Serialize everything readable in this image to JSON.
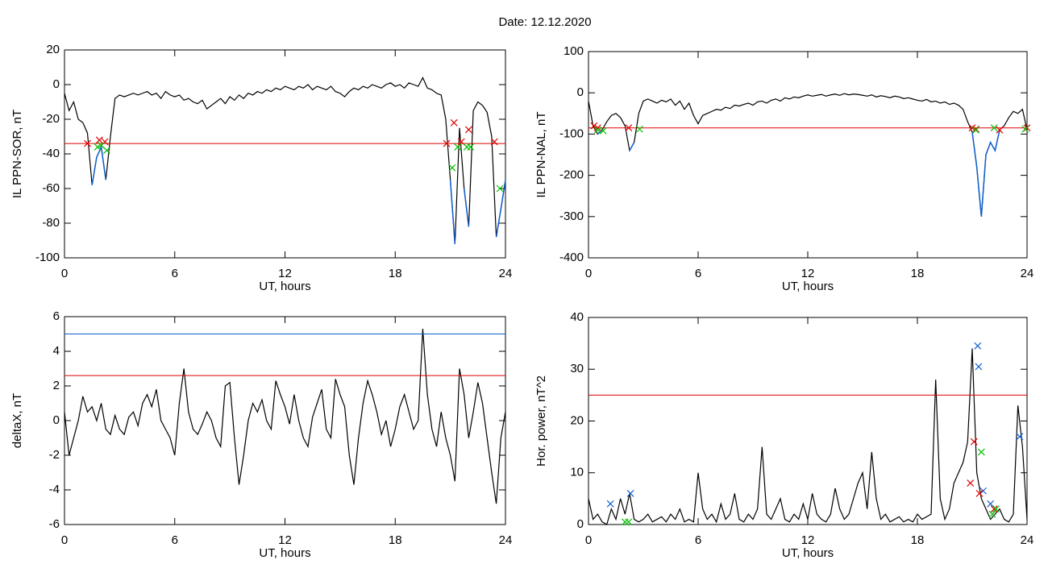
{
  "title": "Date:  12.12.2020",
  "chart_data": [
    {
      "type": "line",
      "ylabel": "IL PPN-SOR, nT",
      "xlabel": "UT, hours",
      "color": "#000000",
      "below_color": "#1060d0",
      "xlim": [
        0,
        24
      ],
      "xticks": [
        0,
        6,
        12,
        18,
        24
      ],
      "ylim": [
        -100,
        20
      ],
      "yticks": [
        20,
        0,
        -20,
        -40,
        -60,
        -80,
        -100
      ],
      "hlines": [
        {
          "value": -34,
          "color": "#e00000"
        }
      ],
      "x": [
        0,
        0.25,
        0.5,
        0.75,
        1,
        1.25,
        1.5,
        1.75,
        2,
        2.25,
        2.5,
        2.75,
        3,
        3.25,
        3.5,
        3.75,
        4,
        4.25,
        4.5,
        4.75,
        5,
        5.25,
        5.5,
        5.75,
        6,
        6.25,
        6.5,
        6.75,
        7,
        7.25,
        7.5,
        7.75,
        8,
        8.25,
        8.5,
        8.75,
        9,
        9.25,
        9.5,
        9.75,
        10,
        10.25,
        10.5,
        10.75,
        11,
        11.25,
        11.5,
        11.75,
        12,
        12.25,
        12.5,
        12.75,
        13,
        13.25,
        13.5,
        13.75,
        14,
        14.25,
        14.5,
        14.75,
        15,
        15.25,
        15.5,
        15.75,
        16,
        16.25,
        16.5,
        16.75,
        17,
        17.25,
        17.5,
        17.75,
        18,
        18.25,
        18.5,
        18.75,
        19,
        19.25,
        19.5,
        19.75,
        20,
        20.25,
        20.5,
        20.75,
        21,
        21.25,
        21.5,
        21.75,
        22,
        22.25,
        22.5,
        22.75,
        23,
        23.25,
        23.5,
        23.75,
        24
      ],
      "values": [
        -5,
        -15,
        -10,
        -20,
        -22,
        -28,
        -58,
        -42,
        -36,
        -55,
        -30,
        -8,
        -6,
        -7,
        -6,
        -5,
        -6,
        -5,
        -4,
        -6,
        -5,
        -8,
        -4,
        -6,
        -7,
        -6,
        -9,
        -8,
        -10,
        -11,
        -9,
        -14,
        -12,
        -10,
        -8,
        -11,
        -7,
        -9,
        -6,
        -8,
        -5,
        -6,
        -4,
        -5,
        -3,
        -4,
        -2,
        -3,
        -1,
        -2,
        -3,
        -1,
        -2,
        0,
        -3,
        -1,
        -2,
        -3,
        -1,
        -4,
        -5,
        -7,
        -4,
        -2,
        -3,
        -1,
        -2,
        0,
        -1,
        -2,
        0,
        1,
        -1,
        0,
        -2,
        1,
        0,
        -1,
        4,
        -2,
        -3,
        -5,
        -6,
        -20,
        -55,
        -92,
        -25,
        -60,
        -82,
        -15,
        -10,
        -12,
        -16,
        -30,
        -88,
        -72,
        -55
      ],
      "markers": [
        {
          "color": "#e00000",
          "x": [
            1.25,
            1.9,
            2.2,
            20.8,
            21.2,
            21.6,
            22.0,
            23.4
          ],
          "values": [
            -34,
            -32,
            -33,
            -34,
            -22,
            -33,
            -26,
            -33
          ]
        },
        {
          "color": "#00c000",
          "x": [
            1.8,
            2.0,
            2.3,
            21.1,
            21.4,
            21.9,
            22.1,
            23.7
          ],
          "values": [
            -36,
            -35,
            -38,
            -48,
            -36,
            -36,
            -36,
            -60
          ]
        }
      ]
    },
    {
      "type": "line",
      "ylabel": "IL PPN-NAL, nT",
      "xlabel": "UT, hours",
      "color": "#000000",
      "below_color": "#1060d0",
      "xlim": [
        0,
        24
      ],
      "xticks": [
        0,
        6,
        12,
        18,
        24
      ],
      "ylim": [
        -400,
        100
      ],
      "yticks": [
        100,
        0,
        -100,
        -200,
        -300,
        -400
      ],
      "hlines": [
        {
          "value": -85,
          "color": "#e00000"
        }
      ],
      "x": [
        0,
        0.25,
        0.5,
        0.75,
        1,
        1.25,
        1.5,
        1.75,
        2,
        2.25,
        2.5,
        2.75,
        3,
        3.25,
        3.5,
        3.75,
        4,
        4.25,
        4.5,
        4.75,
        5,
        5.25,
        5.5,
        5.75,
        6,
        6.25,
        6.5,
        6.75,
        7,
        7.25,
        7.5,
        7.75,
        8,
        8.25,
        8.5,
        8.75,
        9,
        9.25,
        9.5,
        9.75,
        10,
        10.25,
        10.5,
        10.75,
        11,
        11.25,
        11.5,
        11.75,
        12,
        12.25,
        12.5,
        12.75,
        13,
        13.25,
        13.5,
        13.75,
        14,
        14.25,
        14.5,
        14.75,
        15,
        15.25,
        15.5,
        15.75,
        16,
        16.25,
        16.5,
        16.75,
        17,
        17.25,
        17.5,
        17.75,
        18,
        18.25,
        18.5,
        18.75,
        19,
        19.25,
        19.5,
        19.75,
        20,
        20.25,
        20.5,
        20.75,
        21,
        21.25,
        21.5,
        21.75,
        22,
        22.25,
        22.5,
        22.75,
        23,
        23.25,
        23.5,
        23.75,
        24
      ],
      "values": [
        -20,
        -80,
        -100,
        -90,
        -70,
        -55,
        -50,
        -60,
        -80,
        -140,
        -120,
        -50,
        -20,
        -15,
        -20,
        -25,
        -18,
        -22,
        -15,
        -30,
        -20,
        -40,
        -25,
        -55,
        -75,
        -55,
        -50,
        -45,
        -40,
        -42,
        -35,
        -38,
        -30,
        -32,
        -28,
        -25,
        -30,
        -22,
        -20,
        -25,
        -18,
        -15,
        -20,
        -12,
        -15,
        -10,
        -12,
        -8,
        -5,
        -8,
        -6,
        -4,
        -8,
        -5,
        -3,
        -6,
        -2,
        -5,
        -3,
        -4,
        -6,
        -8,
        -5,
        -10,
        -7,
        -9,
        -12,
        -8,
        -10,
        -14,
        -12,
        -15,
        -18,
        -20,
        -16,
        -22,
        -20,
        -25,
        -22,
        -28,
        -25,
        -30,
        -40,
        -70,
        -95,
        -180,
        -300,
        -150,
        -120,
        -140,
        -90,
        -80,
        -60,
        -45,
        -50,
        -40,
        -90
      ],
      "markers": [
        {
          "color": "#e00000",
          "x": [
            0.3,
            0.5,
            2.2,
            21.0,
            21.2,
            22.5,
            24
          ],
          "values": [
            -80,
            -85,
            -85,
            -85,
            -88,
            -90,
            -85
          ]
        },
        {
          "color": "#00c000",
          "x": [
            0.5,
            0.8,
            2.8,
            21.2,
            22.2,
            23.9
          ],
          "values": [
            -90,
            -92,
            -88,
            -90,
            -85,
            -88
          ]
        }
      ]
    },
    {
      "type": "line",
      "ylabel": "deltaX, nT",
      "xlabel": "UT, hours",
      "color": "#000000",
      "xlim": [
        0,
        24
      ],
      "xticks": [
        0,
        6,
        12,
        18,
        24
      ],
      "ylim": [
        -6,
        6
      ],
      "yticks": [
        6,
        4,
        2,
        0,
        -2,
        -4,
        -6
      ],
      "hlines": [
        {
          "value": 5,
          "color": "#1060d0"
        },
        {
          "value": 2.6,
          "color": "#e00000"
        }
      ],
      "x": [
        0,
        0.25,
        0.5,
        0.75,
        1,
        1.25,
        1.5,
        1.75,
        2,
        2.25,
        2.5,
        2.75,
        3,
        3.25,
        3.5,
        3.75,
        4,
        4.25,
        4.5,
        4.75,
        5,
        5.25,
        5.5,
        5.75,
        6,
        6.25,
        6.5,
        6.75,
        7,
        7.25,
        7.5,
        7.75,
        8,
        8.25,
        8.5,
        8.75,
        9,
        9.25,
        9.5,
        9.75,
        10,
        10.25,
        10.5,
        10.75,
        11,
        11.25,
        11.5,
        11.75,
        12,
        12.25,
        12.5,
        12.75,
        13,
        13.25,
        13.5,
        13.75,
        14,
        14.25,
        14.5,
        14.75,
        15,
        15.25,
        15.5,
        15.75,
        16,
        16.25,
        16.5,
        16.75,
        17,
        17.25,
        17.5,
        17.75,
        18,
        18.25,
        18.5,
        18.75,
        19,
        19.25,
        19.5,
        19.75,
        20,
        20.25,
        20.5,
        20.75,
        21,
        21.25,
        21.5,
        21.75,
        22,
        22.25,
        22.5,
        22.75,
        23,
        23.25,
        23.5,
        23.75,
        24
      ],
      "values": [
        0.5,
        -2,
        -1,
        0,
        1.4,
        0.5,
        0.8,
        0,
        1,
        -0.5,
        -0.8,
        0.3,
        -0.5,
        -0.8,
        0.2,
        0.5,
        -0.3,
        1,
        1.5,
        0.8,
        1.8,
        0,
        -0.5,
        -1,
        -2,
        1,
        3,
        0.5,
        -0.5,
        -0.8,
        -0.2,
        0.5,
        0,
        -1,
        -1.5,
        2,
        2.2,
        -1,
        -3.7,
        -2,
        0,
        1,
        0.5,
        1.2,
        0,
        -0.5,
        2.3,
        1.5,
        0.8,
        -0.2,
        1.5,
        0,
        -1,
        -1.5,
        0.2,
        1,
        1.8,
        -0.5,
        -1,
        2.4,
        1.5,
        0.8,
        -2,
        -3.7,
        -1,
        1,
        2.3,
        1.5,
        0.5,
        -0.8,
        0,
        -1.5,
        -0.5,
        0.8,
        1.5,
        0.5,
        -0.5,
        0,
        5.3,
        1.5,
        -0.5,
        -1.5,
        0.5,
        -1,
        -2,
        -3.5,
        3,
        1.5,
        -1,
        0.5,
        2.2,
        1,
        -1,
        -3,
        -4.8,
        -1,
        0.5
      ],
      "markers": []
    },
    {
      "type": "line",
      "ylabel": "Hor. power, nT^2",
      "xlabel": "UT, hours",
      "color": "#000000",
      "xlim": [
        0,
        24
      ],
      "xticks": [
        0,
        6,
        12,
        18,
        24
      ],
      "ylim": [
        0,
        40
      ],
      "yticks": [
        0,
        10,
        20,
        30,
        40
      ],
      "hlines": [
        {
          "value": 25,
          "color": "#e00000"
        }
      ],
      "x": [
        0,
        0.25,
        0.5,
        0.75,
        1,
        1.25,
        1.5,
        1.75,
        2,
        2.25,
        2.5,
        2.75,
        3,
        3.25,
        3.5,
        3.75,
        4,
        4.25,
        4.5,
        4.75,
        5,
        5.25,
        5.5,
        5.75,
        6,
        6.25,
        6.5,
        6.75,
        7,
        7.25,
        7.5,
        7.75,
        8,
        8.25,
        8.5,
        8.75,
        9,
        9.25,
        9.5,
        9.75,
        10,
        10.25,
        10.5,
        10.75,
        11,
        11.25,
        11.5,
        11.75,
        12,
        12.25,
        12.5,
        12.75,
        13,
        13.25,
        13.5,
        13.75,
        14,
        14.25,
        14.5,
        14.75,
        15,
        15.25,
        15.5,
        15.75,
        16,
        16.25,
        16.5,
        16.75,
        17,
        17.25,
        17.5,
        17.75,
        18,
        18.25,
        18.5,
        18.75,
        19,
        19.25,
        19.5,
        19.75,
        20,
        20.25,
        20.5,
        20.75,
        21,
        21.25,
        21.5,
        21.75,
        22,
        22.25,
        22.5,
        22.75,
        23,
        23.25,
        23.5,
        23.75,
        24
      ],
      "values": [
        5,
        1,
        2,
        0.5,
        0,
        3,
        1,
        5,
        2,
        6,
        1,
        0.5,
        1,
        2,
        0.5,
        1,
        1.5,
        0.5,
        2,
        1,
        3,
        0.5,
        1,
        0.5,
        10,
        3,
        1,
        2,
        0.5,
        4,
        1,
        2,
        6,
        1,
        0.5,
        2,
        1,
        3,
        15,
        2,
        1,
        3,
        5,
        1,
        0.5,
        2,
        1,
        4,
        1,
        6,
        2,
        1,
        0.5,
        2,
        7,
        3,
        1,
        2,
        5,
        8,
        10,
        3,
        14,
        5,
        1,
        2,
        0.5,
        1,
        1.5,
        0.5,
        1,
        0.5,
        2,
        1,
        1.5,
        2,
        28,
        5,
        1,
        3,
        8,
        10,
        12,
        16,
        34,
        10,
        5,
        3,
        1,
        2,
        3,
        1,
        0.5,
        2,
        23,
        15,
        1
      ],
      "markers": [
        {
          "color": "#1060d0",
          "x": [
            1.2,
            2.3,
            21.3,
            21.35,
            21.6,
            22.0,
            23.6
          ],
          "values": [
            4,
            6,
            34.5,
            30.5,
            6.5,
            4,
            17
          ]
        },
        {
          "color": "#e00000",
          "x": [
            20.9,
            21.1,
            21.4,
            22.2
          ],
          "values": [
            8,
            16,
            6,
            3
          ]
        },
        {
          "color": "#00c000",
          "x": [
            2.0,
            2.2,
            21.5,
            22.1,
            22.3
          ],
          "values": [
            0.5,
            0.5,
            14,
            2,
            3
          ]
        }
      ]
    }
  ]
}
